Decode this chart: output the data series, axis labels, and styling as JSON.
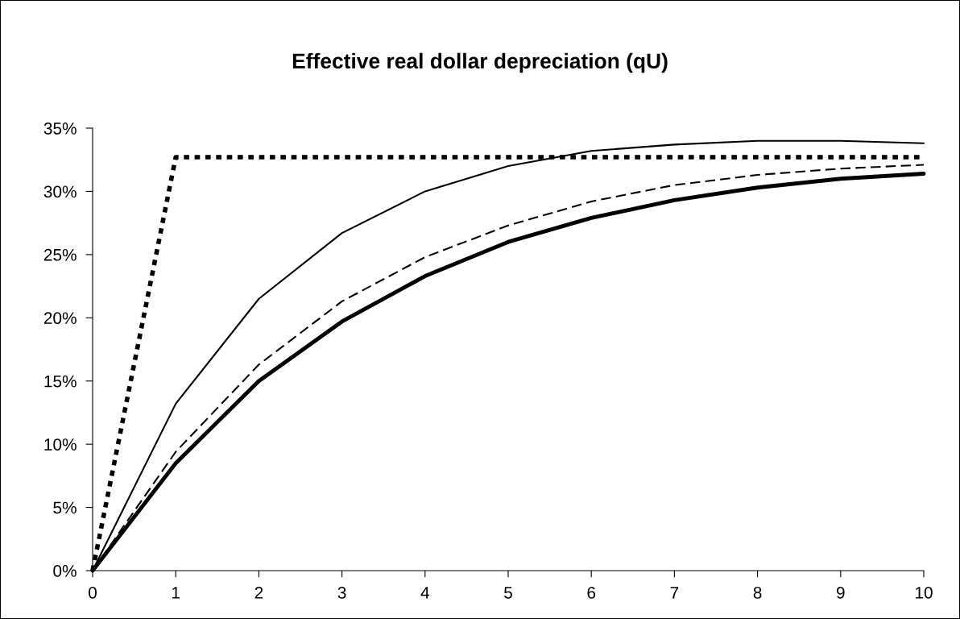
{
  "chart_data": {
    "type": "line",
    "title": "Effective real dollar depreciation (qU)",
    "x": [
      0,
      1,
      2,
      3,
      4,
      5,
      6,
      7,
      8,
      9,
      10
    ],
    "series": [
      {
        "color": "#000000",
        "line_style": "dotted",
        "values": [
          0,
          32.7,
          32.7,
          32.7,
          32.7,
          32.7,
          32.7,
          32.7,
          32.7,
          32.7,
          32.7
        ]
      },
      {
        "color": "#000000",
        "line_style": "solid",
        "values": [
          0,
          13.2,
          21.5,
          26.7,
          30.0,
          32.0,
          33.2,
          33.7,
          34.0,
          34.0,
          33.8
        ]
      },
      {
        "color": "#000000",
        "line_style": "dashed",
        "values": [
          0,
          9.4,
          16.3,
          21.3,
          24.8,
          27.3,
          29.2,
          30.5,
          31.3,
          31.8,
          32.1
        ]
      },
      {
        "color": "#000000",
        "line_style": "solid",
        "values": [
          0,
          8.5,
          15.0,
          19.7,
          23.3,
          26.0,
          27.9,
          29.3,
          30.3,
          31.0,
          31.4
        ]
      }
    ],
    "xlim": [
      0,
      10
    ],
    "xticks": [
      0,
      1,
      2,
      3,
      4,
      5,
      6,
      7,
      8,
      9,
      10
    ],
    "ylim": [
      0,
      35
    ],
    "yticks": [
      {
        "value": 0,
        "label": "0%"
      },
      {
        "value": 5,
        "label": "5%"
      },
      {
        "value": 10,
        "label": "10%"
      },
      {
        "value": 15,
        "label": "15%"
      },
      {
        "value": 20,
        "label": "20%"
      },
      {
        "value": 25,
        "label": "25%"
      },
      {
        "value": 30,
        "label": "30%"
      },
      {
        "value": 35,
        "label": "35%"
      }
    ],
    "marker": "none"
  }
}
